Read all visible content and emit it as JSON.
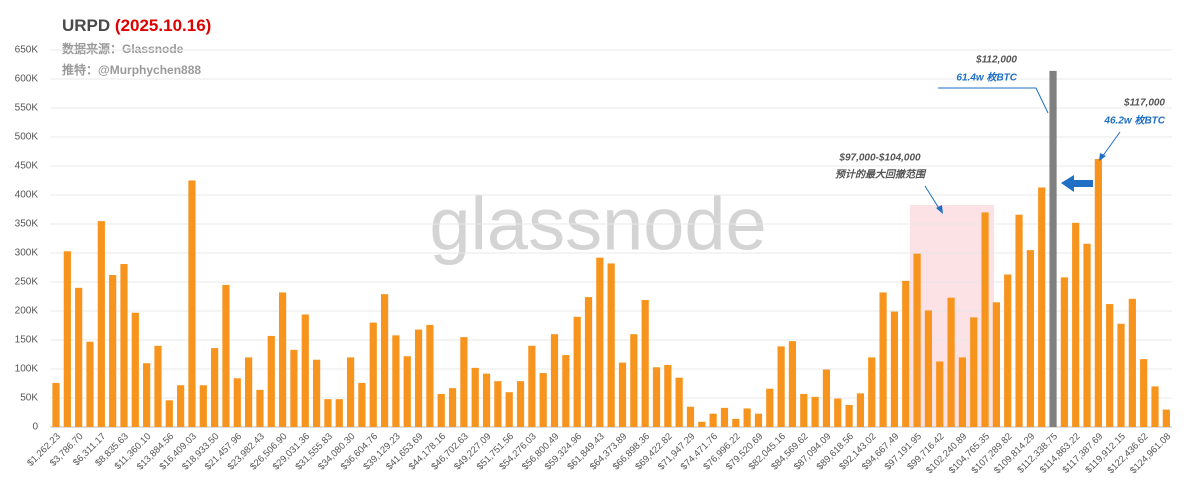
{
  "chart_data": {
    "type": "bar",
    "title": "URPD",
    "title_date": "(2025.10.16)",
    "subtitles": [
      "数据来源：Glassnode",
      "推特：@Murphychen888"
    ],
    "watermark": "glassnode",
    "categories": [
      "$1,262.23",
      null,
      "$3,786.70",
      null,
      "$6,311.17",
      null,
      "$8,835.63",
      null,
      "$11,360.10",
      null,
      "$13,884.56",
      null,
      "$16,409.03",
      null,
      "$18,933.50",
      null,
      "$21,457.96",
      null,
      "$23,982.43",
      null,
      "$26,506.90",
      null,
      "$29,031.36",
      null,
      "$31,555.83",
      null,
      "$34,080.30",
      null,
      "$36,604.76",
      null,
      "$39,129.23",
      null,
      "$41,653.69",
      null,
      "$44,178.16",
      null,
      "$46,702.63",
      null,
      "$49,227.09",
      null,
      "$51,751.56",
      null,
      "$54,276.03",
      null,
      "$56,800.49",
      null,
      "$59,324.96",
      null,
      "$61,849.43",
      null,
      "$64,373.89",
      null,
      "$66,898.36",
      null,
      "$69,422.82",
      null,
      "$71,947.29",
      null,
      "$74,471.76",
      null,
      "$76,996.22",
      null,
      "$79,520.69",
      null,
      "$82,045.16",
      null,
      "$84,569.62",
      null,
      "$87,094.09",
      null,
      "$89,618.56",
      null,
      "$92,143.02",
      null,
      "$94,667.49",
      null,
      "$97,191.95",
      null,
      "$99,716.42",
      null,
      "$102,240.89",
      null,
      "$104,765.35",
      null,
      "$107,289.82",
      null,
      "$109,814.29",
      null,
      "$112,338.75",
      null,
      "$114,863.22",
      null,
      "$117,387.69",
      null,
      "$119,912.15",
      null,
      "$122,436.62",
      null,
      "$124,961.08"
    ],
    "values": [
      76000,
      303000,
      240000,
      147000,
      355000,
      262000,
      281000,
      197000,
      110000,
      140000,
      46000,
      72000,
      425000,
      72000,
      136000,
      245000,
      84000,
      120000,
      64000,
      157000,
      232000,
      133000,
      194000,
      116000,
      48000,
      48000,
      120000,
      76000,
      180000,
      229000,
      158000,
      122000,
      168000,
      176000,
      57000,
      67000,
      155000,
      102000,
      92000,
      79000,
      60000,
      79000,
      140000,
      93000,
      160000,
      124000,
      190000,
      224000,
      292000,
      282000,
      111000,
      160000,
      219000,
      103000,
      107000,
      85000,
      35000,
      9000,
      23000,
      33000,
      14000,
      32000,
      23000,
      66000,
      139000,
      148000,
      57000,
      52000,
      99000,
      49000,
      38000,
      58000,
      120000,
      232000,
      199000,
      252000,
      299000,
      201000,
      113000,
      223000,
      120000,
      189000,
      370000,
      215000,
      263000,
      366000,
      305000,
      413000,
      614000,
      258000,
      352000,
      316000,
      462000,
      212000,
      178000,
      221000,
      117000,
      70000,
      30000
    ],
    "colors": [
      "#f7941d",
      "#f7941d",
      "#f7941d",
      "#f7941d",
      "#f7941d",
      "#f7941d",
      "#f7941d",
      "#f7941d",
      "#f7941d",
      "#f7941d",
      "#f7941d",
      "#f7941d",
      "#f7941d",
      "#f7941d",
      "#f7941d",
      "#f7941d",
      "#f7941d",
      "#f7941d",
      "#f7941d",
      "#f7941d",
      "#f7941d",
      "#f7941d",
      "#f7941d",
      "#f7941d",
      "#f7941d",
      "#f7941d",
      "#f7941d",
      "#f7941d",
      "#f7941d",
      "#f7941d",
      "#f7941d",
      "#f7941d",
      "#f7941d",
      "#f7941d",
      "#f7941d",
      "#f7941d",
      "#f7941d",
      "#f7941d",
      "#f7941d",
      "#f7941d",
      "#f7941d",
      "#f7941d",
      "#f7941d",
      "#f7941d",
      "#f7941d",
      "#f7941d",
      "#f7941d",
      "#f7941d",
      "#f7941d",
      "#f7941d",
      "#f7941d",
      "#f7941d",
      "#f7941d",
      "#f7941d",
      "#f7941d",
      "#f7941d",
      "#f7941d",
      "#f7941d",
      "#f7941d",
      "#f7941d",
      "#f7941d",
      "#f7941d",
      "#f7941d",
      "#f7941d",
      "#f7941d",
      "#f7941d",
      "#f7941d",
      "#f7941d",
      "#f7941d",
      "#f7941d",
      "#f7941d",
      "#f7941d",
      "#f7941d",
      "#f7941d",
      "#f7941d",
      "#f7941d",
      "#f7941d",
      "#f7941d",
      "#f7941d",
      "#f7941d",
      "#f7941d",
      "#f7941d",
      "#f7941d",
      "#f7941d",
      "#f7941d",
      "#f7941d",
      "#f7941d",
      "#f7941d",
      "#808080",
      "#f7941d",
      "#f7941d",
      "#f7941d",
      "#f7941d",
      "#f7941d",
      "#f7941d",
      "#f7941d",
      "#f7941d",
      "#f7941d",
      "#f7941d"
    ],
    "ylim": [
      0,
      650000
    ],
    "yticks": [
      0,
      {
        "value": 50000,
        "label": "50K"
      },
      {
        "value": 100000,
        "label": "100K"
      },
      {
        "value": 150000,
        "label": "150K"
      },
      {
        "value": 200000,
        "label": "200K"
      },
      {
        "value": 250000,
        "label": "250K"
      },
      {
        "value": 300000,
        "label": "300K"
      },
      {
        "value": 350000,
        "label": "350K"
      },
      {
        "value": 400000,
        "label": "400K"
      },
      {
        "value": 450000,
        "label": "450K"
      },
      {
        "value": 500000,
        "label": "500K"
      },
      {
        "value": 550000,
        "label": "550K"
      },
      {
        "value": 600000,
        "label": "600K"
      },
      {
        "value": 650000,
        "label": "650K"
      }
    ],
    "grid": true,
    "annotations": [
      {
        "price": "$112,000",
        "amount": "61.4w 枚BTC"
      },
      {
        "price": "$117,000",
        "amount": "46.2w 枚BTC"
      },
      {
        "price": "$97,000-$104,000",
        "amount": "预计的最大回撤范围"
      }
    ]
  }
}
